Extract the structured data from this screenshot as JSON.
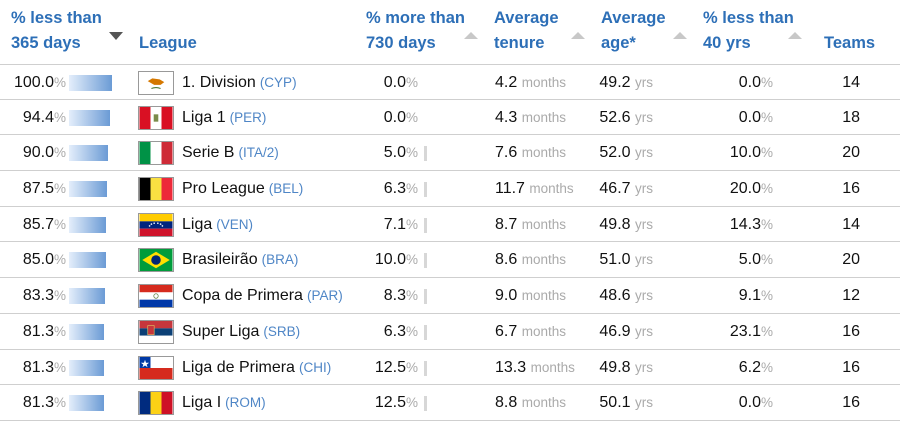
{
  "header": {
    "col_less365": [
      "% less than",
      "365 days"
    ],
    "col_league": "League",
    "col_more730": [
      "% more than",
      "730 days"
    ],
    "col_tenure": [
      "Average",
      "tenure"
    ],
    "col_age": [
      "Average",
      "age*"
    ],
    "col_less40": [
      "% less than",
      "40 yrs"
    ],
    "col_teams": "Teams"
  },
  "units": {
    "pct": "%",
    "months": "months",
    "yrs": "yrs"
  },
  "rows": [
    {
      "less365": "100.0",
      "less365_frac": 1.0,
      "flag": "cyprus-flag",
      "league": "1. Division",
      "country": "(CYP)",
      "more730": "0.0",
      "more730_frac": 0.0,
      "tenure": "4.2",
      "age": "49.2",
      "less40": "0.0",
      "teams": "14"
    },
    {
      "less365": "94.4",
      "less365_frac": 0.944,
      "flag": "peru-flag",
      "league": "Liga 1",
      "country": "(PER)",
      "more730": "0.0",
      "more730_frac": 0.0,
      "tenure": "4.3",
      "age": "52.6",
      "less40": "0.0",
      "teams": "18"
    },
    {
      "less365": "90.0",
      "less365_frac": 0.9,
      "flag": "italy-flag",
      "league": "Serie B",
      "country": "(ITA/2)",
      "more730": "5.0",
      "more730_frac": 0.05,
      "tenure": "7.6",
      "age": "52.0",
      "less40": "10.0",
      "teams": "20"
    },
    {
      "less365": "87.5",
      "less365_frac": 0.875,
      "flag": "belgium-flag",
      "league": "Pro League",
      "country": "(BEL)",
      "more730": "6.3",
      "more730_frac": 0.063,
      "tenure": "11.7",
      "age": "46.7",
      "less40": "20.0",
      "teams": "16"
    },
    {
      "less365": "85.7",
      "less365_frac": 0.857,
      "flag": "venezuela-flag",
      "league": "Liga",
      "country": "(VEN)",
      "more730": "7.1",
      "more730_frac": 0.071,
      "tenure": "8.7",
      "age": "49.8",
      "less40": "14.3",
      "teams": "14"
    },
    {
      "less365": "85.0",
      "less365_frac": 0.85,
      "flag": "brazil-flag",
      "league": "Brasileirão",
      "country": "(BRA)",
      "more730": "10.0",
      "more730_frac": 0.1,
      "tenure": "8.6",
      "age": "51.0",
      "less40": "5.0",
      "teams": "20"
    },
    {
      "less365": "83.3",
      "less365_frac": 0.833,
      "flag": "paraguay-flag",
      "league": "Copa de Primera",
      "country": "(PAR)",
      "more730": "8.3",
      "more730_frac": 0.083,
      "tenure": "9.0",
      "age": "48.6",
      "less40": "9.1",
      "teams": "12"
    },
    {
      "less365": "81.3",
      "less365_frac": 0.813,
      "flag": "serbia-flag",
      "league": "Super Liga",
      "country": "(SRB)",
      "more730": "6.3",
      "more730_frac": 0.063,
      "tenure": "6.7",
      "age": "46.9",
      "less40": "23.1",
      "teams": "16"
    },
    {
      "less365": "81.3",
      "less365_frac": 0.813,
      "flag": "chile-flag",
      "league": "Liga de Primera",
      "country": "(CHI)",
      "more730": "12.5",
      "more730_frac": 0.125,
      "tenure": "13.3",
      "age": "49.8",
      "less40": "6.2",
      "teams": "16"
    },
    {
      "less365": "81.3",
      "less365_frac": 0.813,
      "flag": "romania-flag",
      "league": "Liga I",
      "country": "(ROM)",
      "more730": "12.5",
      "more730_frac": 0.125,
      "tenure": "8.8",
      "age": "50.1",
      "less40": "0.0",
      "teams": "16"
    }
  ]
}
